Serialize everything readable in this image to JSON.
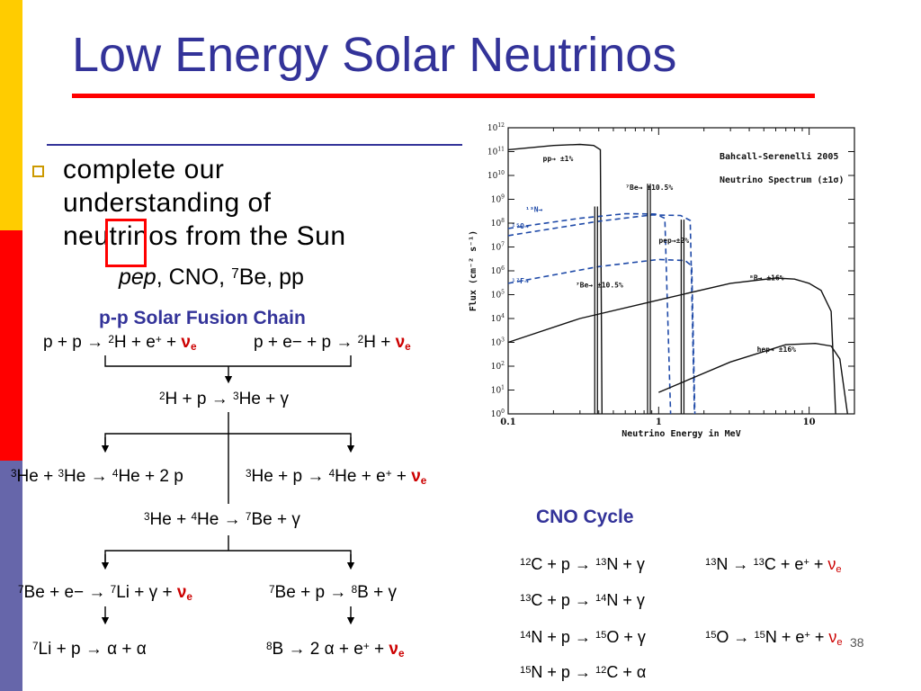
{
  "slide": {
    "title": "Low Energy Solar Neutrinos",
    "bullet": {
      "lines": [
        "complete our",
        "understanding of",
        "neutrinos from the Sun"
      ],
      "sub_parts": {
        "pep": "pep",
        "cno": ", CNO, ",
        "seven": "7",
        "be_pp": "Be, pp"
      }
    },
    "page_number": "38",
    "colors": {
      "title": "#333399",
      "accent_red": "#ff0000",
      "neutrino": "#cc0000",
      "bullet_box": "#cc9900"
    }
  },
  "pp_chain": {
    "title": "p-p Solar Fusion Chain",
    "reactions": {
      "r1": {
        "a": "p + p → ",
        "sup1": "2",
        "b": "H + e",
        "sup2": "+",
        "c": " + ",
        "nu": "ν",
        "nusub": "e"
      },
      "r2": {
        "a": "p + e− + p → ",
        "sup1": "2",
        "b": "H + ",
        "nu": "ν",
        "nusub": "e"
      },
      "r3": {
        "sup1": "2",
        "a": "H + p → ",
        "sup2": "3",
        "b": "He + γ"
      },
      "r4": {
        "sup1": "3",
        "a": "He + ",
        "sup2": "3",
        "b": "He → ",
        "sup3": "4",
        "c": "He + 2 p"
      },
      "r5": {
        "sup1": "3",
        "a": "He + p → ",
        "sup2": "4",
        "b": "He + e",
        "sup3": "+",
        "c": " + ",
        "nu": "ν",
        "nusub": "e"
      },
      "r6": {
        "sup1": "3",
        "a": "He + ",
        "sup2": "4",
        "b": "He → ",
        "sup3": "7",
        "c": "Be + γ"
      },
      "r7": {
        "sup1": "7",
        "a": "Be + e− → ",
        "sup2": "7",
        "b": "Li + γ + ",
        "nu": "ν",
        "nusub": "e"
      },
      "r8": {
        "sup1": "7",
        "a": "Be + p → ",
        "sup2": "8",
        "b": "B + γ"
      },
      "r9": {
        "sup1": "7",
        "a": "Li + p → α + α"
      },
      "r10": {
        "sup1": "8",
        "a": "B → 2 α + e",
        "sup2": "+",
        "b": " + ",
        "nu": "ν",
        "nusub": "e"
      }
    }
  },
  "cno_cycle": {
    "title": "CNO Cycle",
    "reactions": {
      "c1": {
        "sup1": "12",
        "a": "C + p → ",
        "sup2": "13",
        "b": "N + γ"
      },
      "c2": {
        "sup1": "13",
        "a": "N → ",
        "sup2": "13",
        "b": "C + e",
        "sup3": "+",
        "c": " + ",
        "nu": "ν",
        "nusub": "e"
      },
      "c3": {
        "sup1": "13",
        "a": "C + p → ",
        "sup2": "14",
        "b": "N + γ"
      },
      "c4": {
        "sup1": "14",
        "a": "N + p → ",
        "sup2": "15",
        "b": "O + γ"
      },
      "c5": {
        "sup1": "15",
        "a": "O → ",
        "sup2": "15",
        "b": "N + e",
        "sup3": "+",
        "c": " + ",
        "nu": "ν",
        "nusub": "e"
      },
      "c6": {
        "sup1": "15",
        "a": "N + p → ",
        "sup2": "12",
        "b": "C + α"
      }
    }
  },
  "chart_data": {
    "type": "line",
    "title": "Bahcall-Serenelli 2005",
    "subtitle": "Neutrino Spectrum (±1σ)",
    "xlabel": "Neutrino Energy in MeV",
    "ylabel": "Flux (cm⁻² s⁻¹)",
    "x_scale": "log",
    "y_scale": "log",
    "xlim": [
      0.1,
      20
    ],
    "ylim": [
      1,
      1000000000000.0
    ],
    "x_ticks": [
      {
        "value": 0.1,
        "label": "0.1"
      },
      {
        "value": 1,
        "label": "1"
      },
      {
        "value": 10,
        "label": "10"
      }
    ],
    "y_ticks": [
      {
        "value": 1,
        "base": "10",
        "exp": "0"
      },
      {
        "value": 10,
        "base": "10",
        "exp": "1"
      },
      {
        "value": 100,
        "base": "10",
        "exp": "2"
      },
      {
        "value": 1000,
        "base": "10",
        "exp": "3"
      },
      {
        "value": 10000,
        "base": "10",
        "exp": "4"
      },
      {
        "value": 100000,
        "base": "10",
        "exp": "5"
      },
      {
        "value": 1000000,
        "base": "10",
        "exp": "6"
      },
      {
        "value": 10000000,
        "base": "10",
        "exp": "7"
      },
      {
        "value": 100000000,
        "base": "10",
        "exp": "8"
      },
      {
        "value": 1000000000,
        "base": "10",
        "exp": "9"
      },
      {
        "value": 10000000000,
        "base": "10",
        "exp": "10"
      },
      {
        "value": 100000000000,
        "base": "10",
        "exp": "11"
      },
      {
        "value": 1000000000000,
        "base": "10",
        "exp": "12"
      }
    ],
    "series": [
      {
        "name": "pp",
        "style": "solid",
        "color": "#111111",
        "label": "pp→ ±1%",
        "points": [
          [
            0.1,
            120000000000.0
          ],
          [
            0.2,
            180000000000.0
          ],
          [
            0.3,
            200000000000.0
          ],
          [
            0.37,
            180000000000.0
          ],
          [
            0.41,
            120000000000.0
          ],
          [
            0.42,
            1
          ]
        ]
      },
      {
        "name": "13N",
        "style": "dashed",
        "color": "#1f4aa8",
        "label": "¹³N→",
        "points": [
          [
            0.1,
            60000000.0
          ],
          [
            0.3,
            160000000.0
          ],
          [
            0.6,
            250000000.0
          ],
          [
            0.95,
            240000000.0
          ],
          [
            1.1,
            160000000.0
          ],
          [
            1.2,
            1
          ]
        ]
      },
      {
        "name": "15O",
        "style": "dashed",
        "color": "#1f4aa8",
        "label": "¹⁵O→",
        "points": [
          [
            0.1,
            30000000.0
          ],
          [
            0.4,
            120000000.0
          ],
          [
            0.9,
            220000000.0
          ],
          [
            1.4,
            210000000.0
          ],
          [
            1.62,
            130000000.0
          ],
          [
            1.73,
            1
          ]
        ]
      },
      {
        "name": "17F",
        "style": "dashed",
        "color": "#1f4aa8",
        "label": "¹⁷F→",
        "points": [
          [
            0.1,
            300000.0
          ],
          [
            0.4,
            1500000.0
          ],
          [
            1.0,
            3000000.0
          ],
          [
            1.5,
            2700000.0
          ],
          [
            1.66,
            1600000.0
          ],
          [
            1.74,
            1
          ]
        ]
      },
      {
        "name": "8B",
        "style": "solid",
        "color": "#111111",
        "label": "⁸B→ ±16%",
        "points": [
          [
            0.1,
            1000.0
          ],
          [
            0.3,
            10000.0
          ],
          [
            1,
            60000.0
          ],
          [
            3,
            300000.0
          ],
          [
            6,
            500000.0
          ],
          [
            8,
            450000.0
          ],
          [
            10,
            300000.0
          ],
          [
            12,
            150000.0
          ],
          [
            14,
            20000.0
          ],
          [
            15,
            1
          ]
        ]
      },
      {
        "name": "hep",
        "style": "solid",
        "color": "#111111",
        "label": "hep→ ±16%",
        "points": [
          [
            1,
            8
          ],
          [
            3,
            150
          ],
          [
            7,
            800
          ],
          [
            11,
            900
          ],
          [
            14,
            700
          ],
          [
            16,
            200
          ],
          [
            18,
            1
          ]
        ]
      }
    ],
    "lines": [
      {
        "name": "7Be 0.86",
        "style": "solid",
        "color": "#111111",
        "x": 0.862,
        "flux": 4500000000.0,
        "label": "⁷Be→ ±10.5%"
      },
      {
        "name": "7Be 0.38",
        "style": "solid",
        "color": "#111111",
        "x": 0.384,
        "flux": 500000000.0,
        "label": "⁷Be→ ±10.5%"
      },
      {
        "name": "pep",
        "style": "solid",
        "color": "#111111",
        "x": 1.442,
        "flux": 140000000.0,
        "label": "pep→±2%"
      }
    ],
    "grid": false,
    "legend_position": "top-right"
  }
}
